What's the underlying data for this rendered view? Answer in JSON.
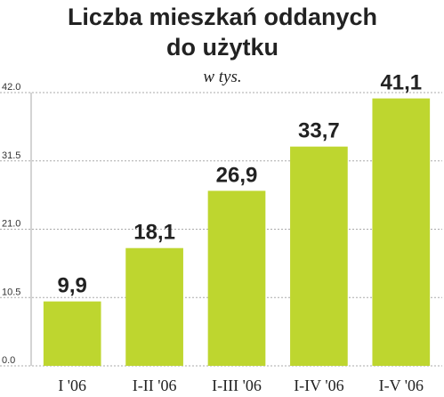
{
  "chart_data": {
    "type": "bar",
    "title": [
      "Liczba mieszkań oddanych",
      "do użytku"
    ],
    "subtitle": "w tys.",
    "categories": [
      "I '06",
      "I-II '06",
      "I-III '06",
      "I-IV '06",
      "I-V '06"
    ],
    "values": [
      9.9,
      18.1,
      26.9,
      33.7,
      41.1
    ],
    "value_labels": [
      "9,9",
      "18,1",
      "26,9",
      "33,7",
      "41,1"
    ],
    "color": "#bed62f",
    "ylim": [
      0,
      42
    ],
    "yticks": [
      {
        "value": 0,
        "label": "0.0"
      },
      {
        "value": 10.5,
        "label": "10.5"
      },
      {
        "value": 21,
        "label": "21.0"
      },
      {
        "value": 31.5,
        "label": "31.5"
      },
      {
        "value": 42,
        "label": "42.0"
      }
    ],
    "grid": true
  }
}
